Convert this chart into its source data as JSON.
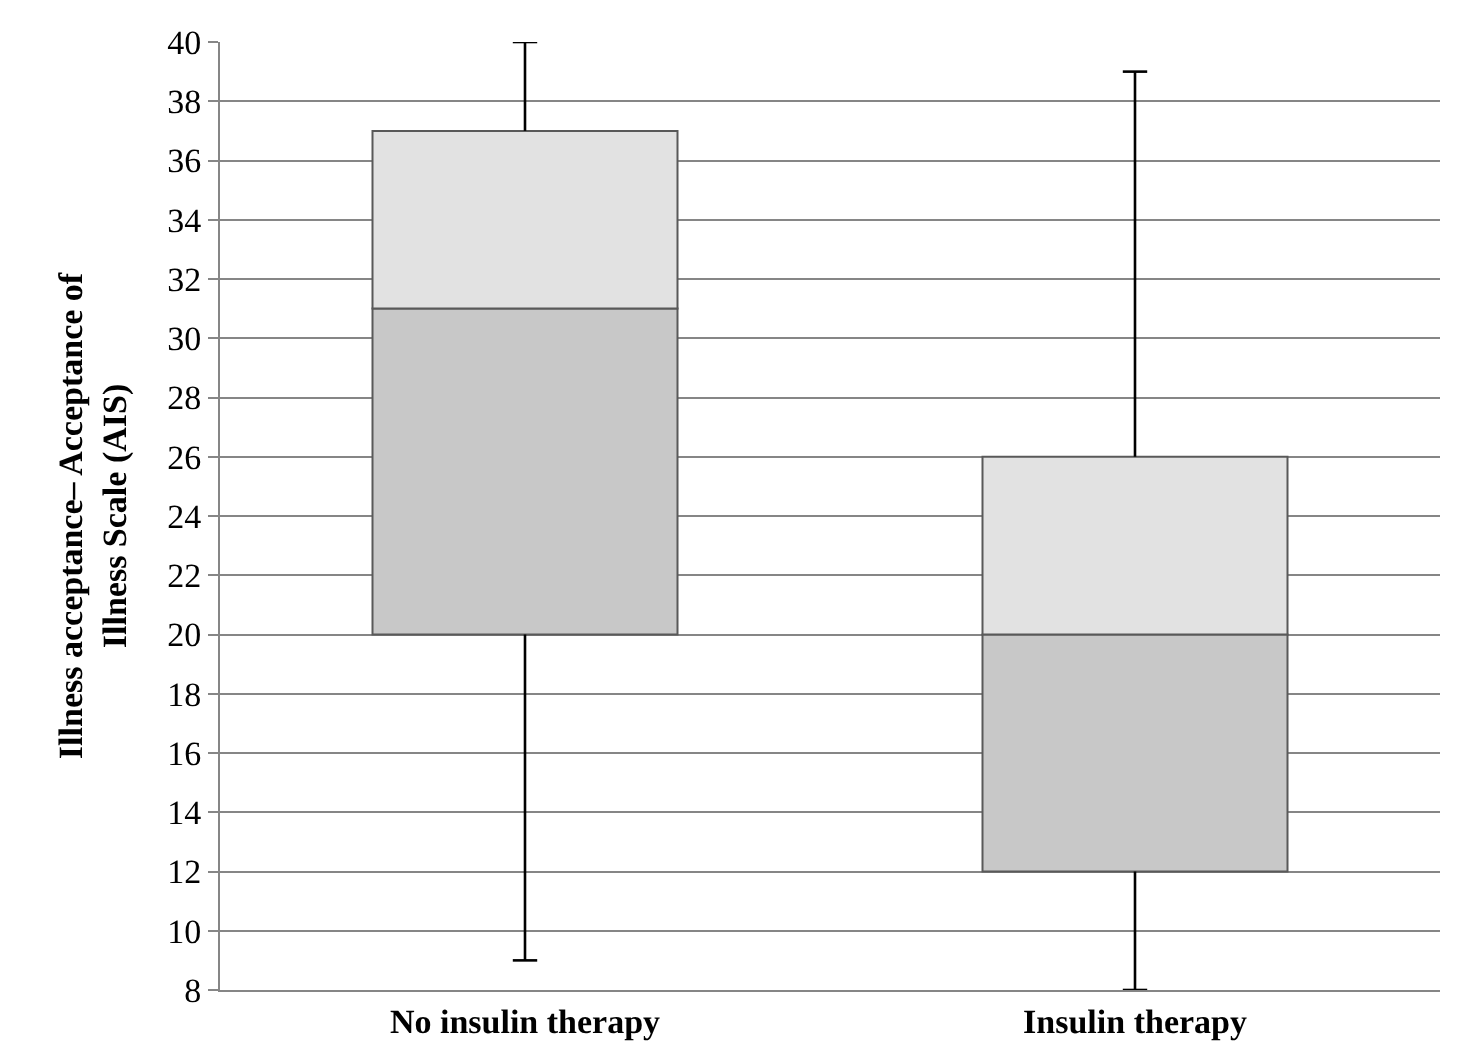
{
  "chart_data": {
    "type": "box",
    "ylabel": "Illness acceptance– Acceptance of Illness Scale (AIS)",
    "categories": [
      "No insulin therapy",
      "Insulin therapy"
    ],
    "boxes": [
      {
        "low": 9,
        "q1": 20,
        "median": 31,
        "q3": 37,
        "high": 40
      },
      {
        "low": 8,
        "q1": 12,
        "median": 20,
        "q3": 26,
        "high": 39
      }
    ],
    "colors": [
      "#c8c8c8",
      "#c8c8c8"
    ],
    "color": "#e2e2e2",
    "ylim": [
      8,
      40
    ],
    "yticks": [
      8,
      10,
      12,
      14,
      16,
      18,
      20,
      22,
      24,
      26,
      28,
      30,
      32,
      34,
      36,
      38,
      40
    ],
    "grid": "y"
  }
}
